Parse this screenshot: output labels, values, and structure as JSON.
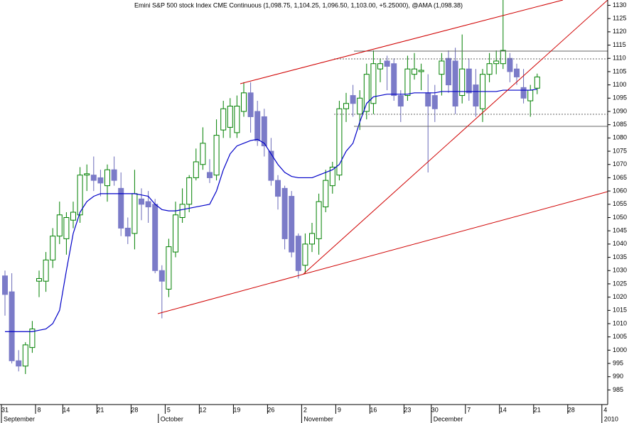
{
  "chart_data": {
    "type": "candlestick",
    "title": "Emini S&P 500 stock Index CME Continuous (1,098.75, 1,104.25, 1,096.50, 1,103.00, +5.25000), @AMA (1,098.38)",
    "categories": [
      "31",
      null,
      null,
      null,
      null,
      "8",
      null,
      null,
      null,
      "14",
      null,
      null,
      null,
      null,
      "21",
      null,
      null,
      null,
      null,
      "28",
      null,
      null,
      null,
      null,
      "5",
      null,
      null,
      null,
      null,
      "12",
      null,
      null,
      null,
      null,
      "19",
      null,
      null,
      null,
      null,
      "26",
      null,
      null,
      null,
      null,
      "2",
      null,
      null,
      null,
      null,
      "9",
      null,
      null,
      null,
      null,
      "16",
      null,
      null,
      null,
      null,
      "23",
      null,
      null,
      null,
      "30",
      null,
      null,
      null,
      null,
      "7",
      null,
      null,
      null,
      null,
      "14",
      null,
      null,
      null,
      null,
      "21",
      null,
      null,
      null,
      null,
      "28",
      null,
      null,
      null,
      null,
      "4"
    ],
    "month_labels": [
      "September",
      null,
      null,
      null,
      null,
      null,
      null,
      null,
      null,
      null,
      null,
      null,
      null,
      null,
      null,
      null,
      null,
      null,
      null,
      null,
      null,
      null,
      null,
      "October",
      null,
      null,
      null,
      null,
      null,
      null,
      null,
      null,
      null,
      null,
      null,
      null,
      null,
      null,
      null,
      null,
      null,
      null,
      null,
      null,
      "November",
      null,
      null,
      null,
      null,
      null,
      null,
      null,
      null,
      null,
      null,
      null,
      null,
      null,
      null,
      null,
      null,
      null,
      null,
      "December",
      null,
      null,
      null,
      null,
      null,
      null,
      null,
      null,
      null,
      null,
      null,
      null,
      null,
      null,
      null,
      null,
      null,
      null,
      null,
      null,
      null,
      null,
      null,
      null,
      "2010"
    ],
    "open": [
      1028,
      1022,
      996,
      994,
      1001,
      1026,
      1026,
      1034,
      1043,
      1042,
      1049,
      1051,
      1066,
      1066,
      1065,
      1062,
      1068,
      1061,
      1046,
      1044,
      1057,
      1056,
      1055,
      1030,
      1023,
      1037,
      1050,
      1055,
      1065,
      1070,
      1067,
      1066,
      1083,
      1084,
      1082,
      1090,
      1097,
      1090,
      1088,
      1075,
      1064,
      1061,
      1058,
      1043,
      1032,
      1040,
      1042,
      1054,
      1062,
      1066,
      1091,
      1096,
      1089,
      1090,
      1093,
      1106,
      1109,
      1108,
      1096,
      1096,
      1104,
      1105,
      1097,
      1096,
      1104,
      1110,
      1109,
      1096,
      1106,
      1100,
      1091,
      1104,
      1108,
      1108,
      1110,
      1106,
      1099,
      1094,
      1098.75,
      null,
      null,
      null,
      null,
      null,
      null,
      null,
      null,
      null,
      null
    ],
    "high": [
      1030,
      1029,
      1000,
      1003,
      1011,
      1030,
      1037,
      1046,
      1056,
      1052,
      1056,
      1069,
      1070,
      1073,
      1068,
      1070,
      1073,
      1067,
      1050,
      1068,
      1061,
      1060,
      1057,
      1032,
      1042,
      1056,
      1061,
      1066,
      1076,
      1084,
      1072,
      1087,
      1094,
      1095,
      1096,
      1101,
      1101,
      1094,
      1091,
      1080,
      1066,
      1062,
      1060,
      1044,
      1044,
      1048,
      1059,
      1068,
      1071,
      1094,
      1097,
      1100,
      1098,
      1108,
      1113,
      1110,
      1111,
      1110,
      1098,
      1111,
      1112,
      1108,
      1104,
      1100,
      1112,
      1113,
      1114,
      1119,
      1110,
      1106,
      1106,
      1112,
      1113,
      1132,
      1112,
      1108,
      1106,
      1100,
      1104.25,
      null,
      null,
      null,
      null,
      null,
      null,
      null,
      null,
      null,
      null
    ],
    "low": [
      1013,
      995,
      992,
      991,
      999,
      1020,
      1022,
      1031,
      1040,
      1036,
      1046,
      1048,
      1060,
      1060,
      1058,
      1056,
      1062,
      1043,
      1040,
      1038,
      1049,
      1048,
      1029,
      1012,
      1020,
      1035,
      1048,
      1052,
      1064,
      1068,
      1063,
      1064,
      1080,
      1080,
      1080,
      1088,
      1082,
      1077,
      1073,
      1062,
      1053,
      1038,
      1035,
      1027,
      1029,
      1037,
      1036,
      1052,
      1059,
      1064,
      1086,
      1088,
      1083,
      1087,
      1089,
      1101,
      1098,
      1094,
      1086,
      1094,
      1102,
      1098,
      1067,
      1086,
      1096,
      1097,
      1089,
      1093,
      1094,
      1088,
      1086,
      1101,
      1104,
      1106,
      1101,
      1100,
      1093,
      1088,
      1096.5,
      null,
      null,
      null,
      null,
      null,
      null,
      null,
      null,
      null,
      null
    ],
    "close": [
      1021,
      996,
      994,
      1002,
      1008,
      1027,
      1034,
      1043,
      1051,
      1050,
      1052,
      1066,
      1066.5,
      1064,
      1063,
      1068,
      1064,
      1046,
      1043,
      1059,
      1055,
      1054,
      1030,
      1026,
      1039,
      1051,
      1055,
      1065,
      1071,
      1078,
      1065,
      1081,
      1091,
      1092,
      1092,
      1097,
      1088,
      1079,
      1077,
      1064,
      1058,
      1042,
      1037,
      1030,
      1040,
      1044,
      1056,
      1064,
      1069,
      1091,
      1093,
      1093,
      1095,
      1104,
      1108,
      1108,
      1107,
      1096,
      1092,
      1106,
      1106,
      1105.5,
      1092,
      1091,
      1109,
      1100,
      1092,
      1106,
      1097,
      1092,
      1104,
      1108,
      1109,
      1113,
      1105,
      1103,
      1095,
      1098,
      1103,
      null,
      null,
      null,
      null,
      null,
      null,
      null,
      null,
      null,
      null
    ],
    "up_color": "#008000",
    "down_color": "#7b7bc8",
    "overlay_color": "#0000c8",
    "overlay_values": [
      1007,
      1007,
      1007,
      1007,
      1007,
      1007.5,
      1008,
      1010,
      1015,
      1030,
      1044,
      1052,
      1056,
      1058,
      1059,
      1059,
      1059,
      1059,
      1059,
      1059,
      1058.5,
      1058,
      1055,
      1053,
      1052.5,
      1052.5,
      1053,
      1053.5,
      1054,
      1054.5,
      1055,
      1060,
      1068,
      1074,
      1077,
      1078,
      1079,
      1079.5,
      1078,
      1074,
      1070,
      1067,
      1065.5,
      1065,
      1065,
      1065,
      1066,
      1067,
      1068,
      1070,
      1075,
      1078,
      1086,
      1093,
      1095.5,
      1096,
      1096.5,
      1096.5,
      1096.5,
      1096.5,
      1097,
      1097,
      1097,
      1097,
      1097.5,
      1097.5,
      1097.5,
      1097.5,
      1097.5,
      1097.5,
      1097.5,
      1097.5,
      1097.5,
      1098,
      1098,
      1098,
      1098,
      1098,
      1098.38,
      null,
      null,
      null,
      null,
      null,
      null,
      null,
      null,
      null,
      null
    ],
    "ylim": [
      979.5,
      1132
    ],
    "yticks": [
      985,
      990,
      995,
      1000,
      1005,
      1010,
      1015,
      1020,
      1025,
      1030,
      1035,
      1040,
      1045,
      1050,
      1055,
      1060,
      1065,
      1070,
      1075,
      1080,
      1085,
      1090,
      1095,
      1100,
      1105,
      1110,
      1115,
      1120,
      1125,
      1130
    ]
  }
}
